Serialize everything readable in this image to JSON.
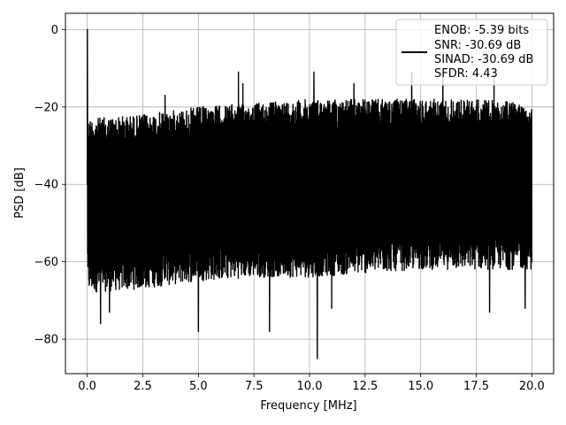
{
  "chart_data": {
    "type": "line",
    "title": "",
    "xlabel": "Frequency [MHz]",
    "ylabel": "PSD [dB]",
    "xlim": [
      -0.98,
      20.98
    ],
    "ylim": [
      -88.9,
      4.2
    ],
    "xticks": [
      0.0,
      2.5,
      5.0,
      7.5,
      10.0,
      12.5,
      15.0,
      17.5,
      20.0
    ],
    "xtick_labels": [
      "0.0",
      "2.5",
      "5.0",
      "7.5",
      "10.0",
      "12.5",
      "15.0",
      "17.5",
      "20.0"
    ],
    "yticks": [
      0,
      -20,
      -40,
      -60,
      -80
    ],
    "ytick_labels": [
      "0",
      "−20",
      "−40",
      "−60",
      "−80"
    ],
    "grid": true,
    "legend_position": "top-right",
    "legend": {
      "lines": [
        "ENOB: -5.39 bits",
        "SNR: -30.69 dB",
        "SINAD: -30.69 dB",
        "SFDR: 4.43"
      ]
    },
    "series": [
      {
        "color": "#000000",
        "x_range": [
          0.0,
          20.0
        ],
        "points": 3000,
        "description_peak": {
          "x": 0.0,
          "y": 0.0
        },
        "band_center": [
          [
            0.0,
            -45
          ],
          [
            5.0,
            -44
          ],
          [
            10.0,
            -42
          ],
          [
            15.0,
            -41
          ],
          [
            20.0,
            -43
          ]
        ],
        "upper_envelope": [
          [
            0.0,
            -23
          ],
          [
            2.5,
            -22
          ],
          [
            5.0,
            -20
          ],
          [
            7.5,
            -19
          ],
          [
            10.0,
            -18
          ],
          [
            12.5,
            -18
          ],
          [
            15.0,
            -18
          ],
          [
            17.5,
            -18
          ],
          [
            20.0,
            -19
          ]
        ],
        "lower_envelope": [
          [
            0.0,
            -68
          ],
          [
            2.5,
            -67
          ],
          [
            5.0,
            -65
          ],
          [
            7.5,
            -64
          ],
          [
            10.0,
            -64
          ],
          [
            12.5,
            -63
          ],
          [
            15.0,
            -62
          ],
          [
            17.5,
            -62
          ],
          [
            20.0,
            -62
          ]
        ],
        "notable_dips": [
          [
            0.6,
            -76
          ],
          [
            1.0,
            -73
          ],
          [
            5.0,
            -78
          ],
          [
            8.2,
            -78
          ],
          [
            10.35,
            -85
          ],
          [
            11.0,
            -72
          ],
          [
            18.1,
            -73
          ],
          [
            19.7,
            -72
          ]
        ],
        "notable_spikes": [
          [
            6.8,
            -11
          ],
          [
            10.2,
            -11
          ],
          [
            14.6,
            -11
          ],
          [
            16.0,
            -12
          ],
          [
            18.3,
            -12
          ],
          [
            7.0,
            -14
          ],
          [
            12.0,
            -14
          ],
          [
            3.5,
            -17
          ]
        ]
      }
    ]
  }
}
